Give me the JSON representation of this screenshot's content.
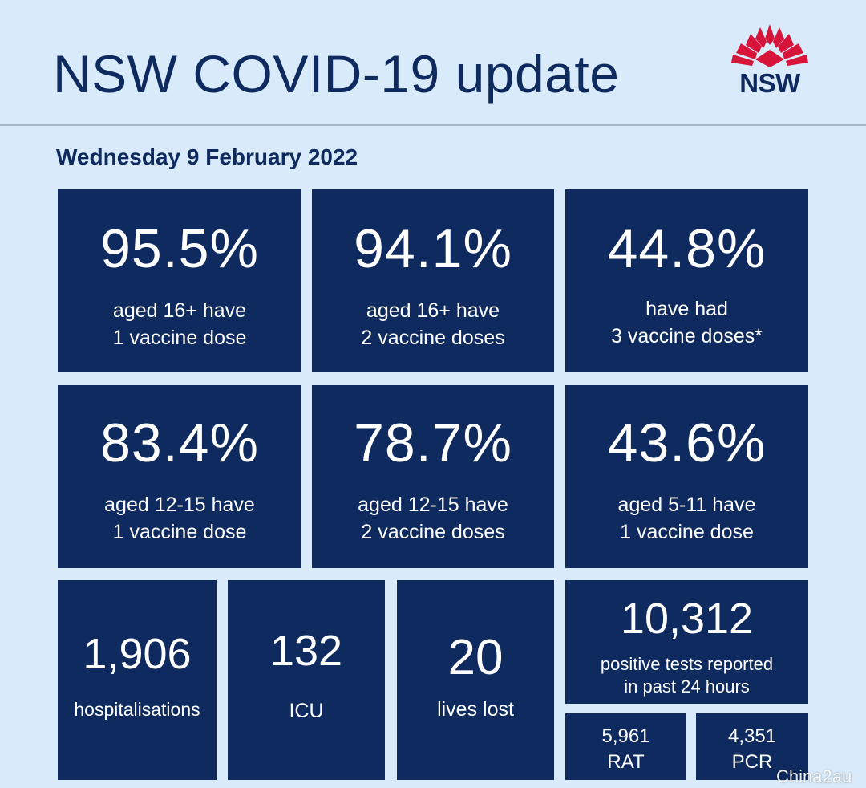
{
  "header": {
    "title": "NSW COVID-19 update",
    "logo_text": "NSW",
    "date": "Wednesday 9 February 2022"
  },
  "stats": {
    "vaccination": [
      {
        "value": "95.5%",
        "line1": "aged 16+ have",
        "line2": "1 vaccine dose"
      },
      {
        "value": "94.1%",
        "line1": "aged 16+ have",
        "line2": "2 vaccine doses"
      },
      {
        "value": "44.8%",
        "line1": "have had",
        "line2": "3 vaccine doses*"
      },
      {
        "value": "83.4%",
        "line1": "aged 12-15 have",
        "line2": "1 vaccine dose"
      },
      {
        "value": "78.7%",
        "line1": "aged 12-15 have",
        "line2": "2 vaccine doses"
      },
      {
        "value": "43.6%",
        "line1": "aged 5-11 have",
        "line2": "1 vaccine dose"
      }
    ],
    "hospitalisations": {
      "value": "1,906",
      "label": "hospitalisations"
    },
    "icu": {
      "value": "132",
      "label": "ICU"
    },
    "deaths": {
      "value": "20",
      "label": "lives lost"
    },
    "positive_tests": {
      "value": "10,312",
      "line1": "positive tests reported",
      "line2": "in past 24 hours"
    },
    "rat": {
      "value": "5,961",
      "label": "RAT"
    },
    "pcr": {
      "value": "4,351",
      "label": "PCR"
    }
  },
  "watermark": "China2au",
  "colors": {
    "background": "#d9ebfa",
    "tile": "#0e2a5e",
    "logo_red": "#d7153a"
  }
}
